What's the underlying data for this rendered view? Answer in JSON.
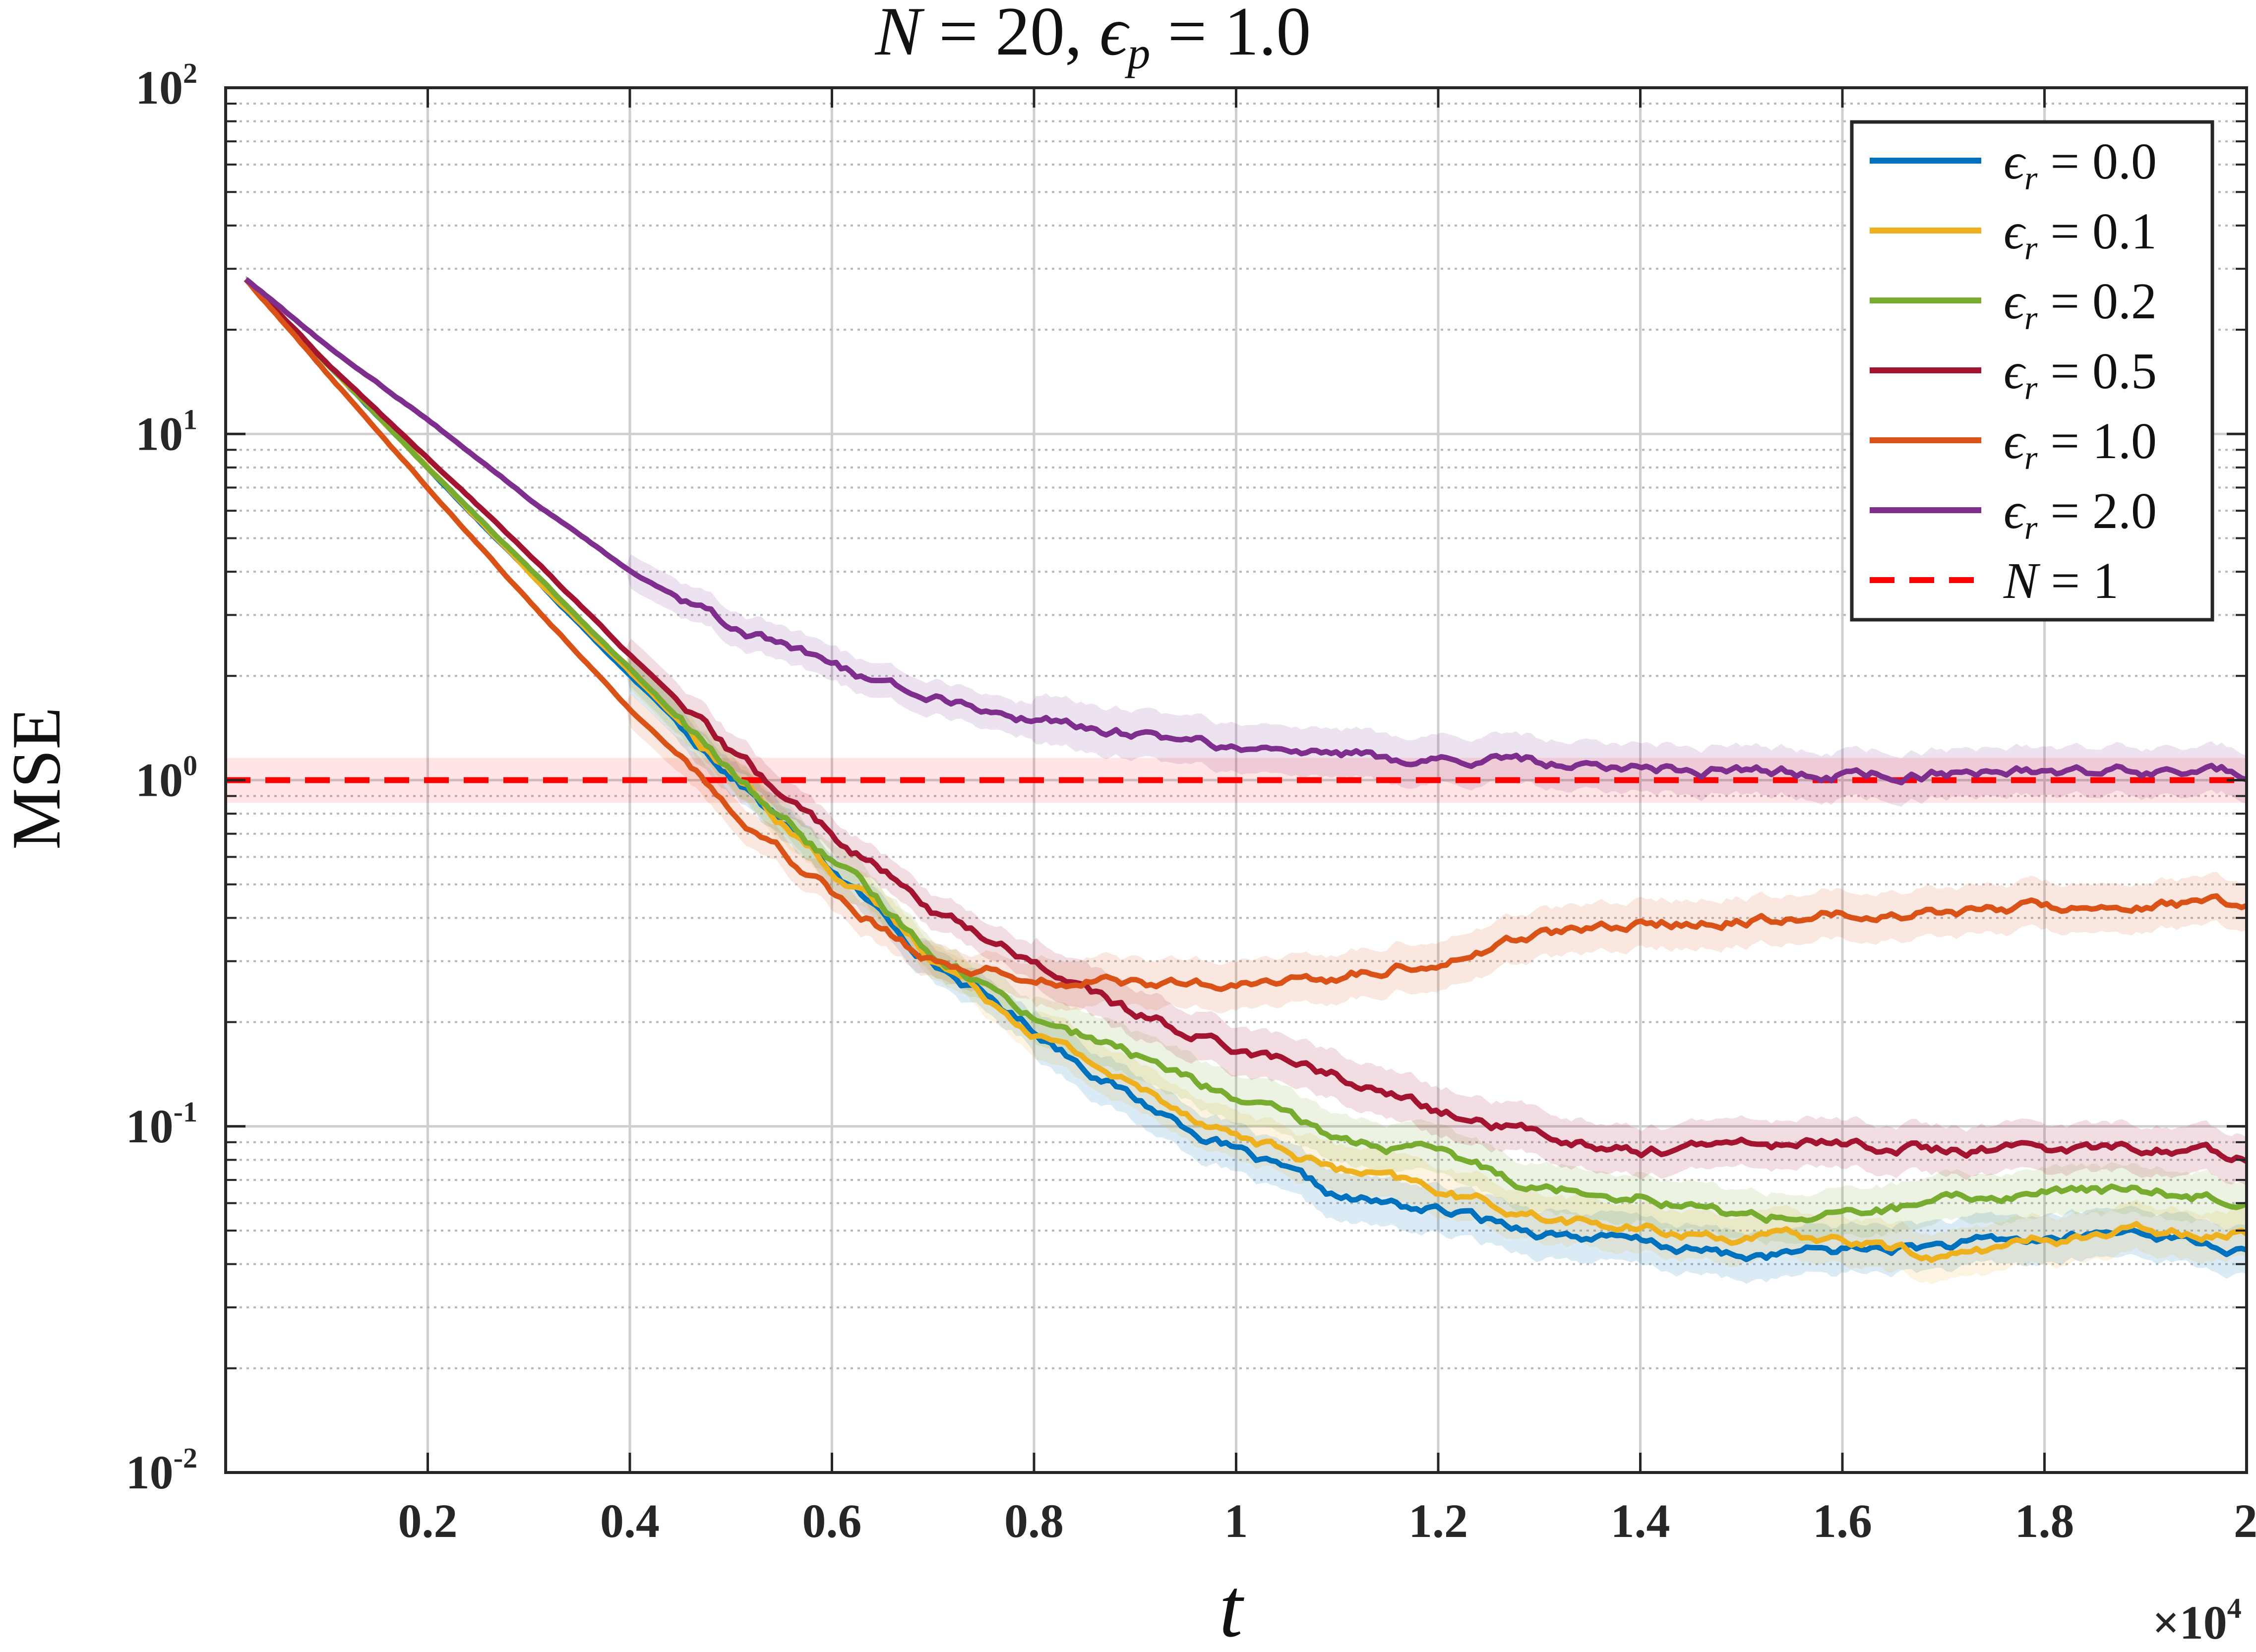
{
  "chart_data": {
    "type": "line",
    "title": "N = 20, ε_p = 1.0",
    "title_parts": {
      "lhs1": "N",
      "rel": " = 20, ",
      "eps": "ϵ",
      "sub": "p",
      "rhs": " = 1.0"
    },
    "xlabel": "t",
    "ylabel": "MSE",
    "x_multiplier": "×10⁴",
    "x_multiplier_parts": {
      "base": "×10",
      "exp": "4"
    },
    "xlim": [
      0,
      2
    ],
    "ylim": [
      0.01,
      100
    ],
    "y_scale": "log",
    "x_ticks": [
      0.2,
      0.4,
      0.6,
      0.8,
      1,
      1.2,
      1.4,
      1.6,
      1.8,
      2
    ],
    "x_tick_labels": [
      "0.2",
      "0.4",
      "0.6",
      "0.8",
      "1",
      "1.2",
      "1.4",
      "1.6",
      "1.8",
      "2"
    ],
    "y_ticks": [
      {
        "value": 0.01,
        "base": "10",
        "exp": "-2"
      },
      {
        "value": 0.1,
        "base": "10",
        "exp": "-1"
      },
      {
        "value": 1,
        "base": "10",
        "exp": "0"
      },
      {
        "value": 10,
        "base": "10",
        "exp": "1"
      },
      {
        "value": 100,
        "base": "10",
        "exp": "2"
      }
    ],
    "grid": true,
    "legend_position": "top-right",
    "x": [
      0.02,
      0.1,
      0.2,
      0.3,
      0.4,
      0.5,
      0.6,
      0.7,
      0.8,
      0.9,
      1.0,
      1.1,
      1.2,
      1.3,
      1.4,
      1.5,
      1.6,
      1.7,
      1.8,
      1.9,
      2.0
    ],
    "series": [
      {
        "name": "ϵr = 0.0",
        "legend_value": "0.0",
        "color": "#0072BD",
        "band": true,
        "values": [
          28,
          16,
          8.0,
          4.0,
          2.0,
          1.05,
          0.55,
          0.3,
          0.19,
          0.12,
          0.085,
          0.062,
          0.057,
          0.05,
          0.046,
          0.042,
          0.044,
          0.045,
          0.047,
          0.05,
          0.043
        ]
      },
      {
        "name": "ϵr = 0.1",
        "legend_value": "0.1",
        "color": "#EDB120",
        "band": true,
        "values": [
          28,
          16,
          8.0,
          4.0,
          2.05,
          1.05,
          0.56,
          0.31,
          0.19,
          0.13,
          0.095,
          0.075,
          0.065,
          0.055,
          0.05,
          0.048,
          0.047,
          0.042,
          0.047,
          0.05,
          0.05
        ]
      },
      {
        "name": "ϵr = 0.2",
        "legend_value": "0.2",
        "color": "#77AC30",
        "band": true,
        "values": [
          28,
          16,
          8.0,
          4.1,
          2.1,
          1.05,
          0.58,
          0.32,
          0.21,
          0.16,
          0.12,
          0.092,
          0.083,
          0.067,
          0.064,
          0.055,
          0.055,
          0.06,
          0.065,
          0.065,
          0.062
        ]
      },
      {
        "name": "ϵr = 0.5",
        "legend_value": "0.5",
        "color": "#A2142F",
        "band": true,
        "values": [
          28,
          16,
          8.5,
          4.5,
          2.3,
          1.2,
          0.7,
          0.42,
          0.3,
          0.21,
          0.17,
          0.14,
          0.11,
          0.095,
          0.085,
          0.088,
          0.09,
          0.085,
          0.086,
          0.087,
          0.082
        ]
      },
      {
        "name": "ϵr = 1.0",
        "legend_value": "1.0",
        "color": "#D95319",
        "band": true,
        "values": [
          28,
          15,
          7.0,
          3.3,
          1.6,
          0.85,
          0.48,
          0.3,
          0.27,
          0.26,
          0.25,
          0.27,
          0.3,
          0.36,
          0.38,
          0.4,
          0.41,
          0.42,
          0.43,
          0.44,
          0.44
        ]
      },
      {
        "name": "ϵr = 2.0",
        "legend_value": "2.0",
        "color": "#7E2F8E",
        "band": true,
        "values": [
          28,
          18,
          11,
          6.5,
          4.0,
          2.8,
          2.1,
          1.75,
          1.5,
          1.35,
          1.25,
          1.18,
          1.14,
          1.12,
          1.1,
          1.06,
          1.04,
          1.05,
          1.05,
          1.06,
          1.05
        ]
      }
    ],
    "reference_line": {
      "name": "N = 1",
      "value": 1.0,
      "color": "#FF0000",
      "style": "dashed",
      "band": [
        0.86,
        1.16
      ]
    }
  }
}
